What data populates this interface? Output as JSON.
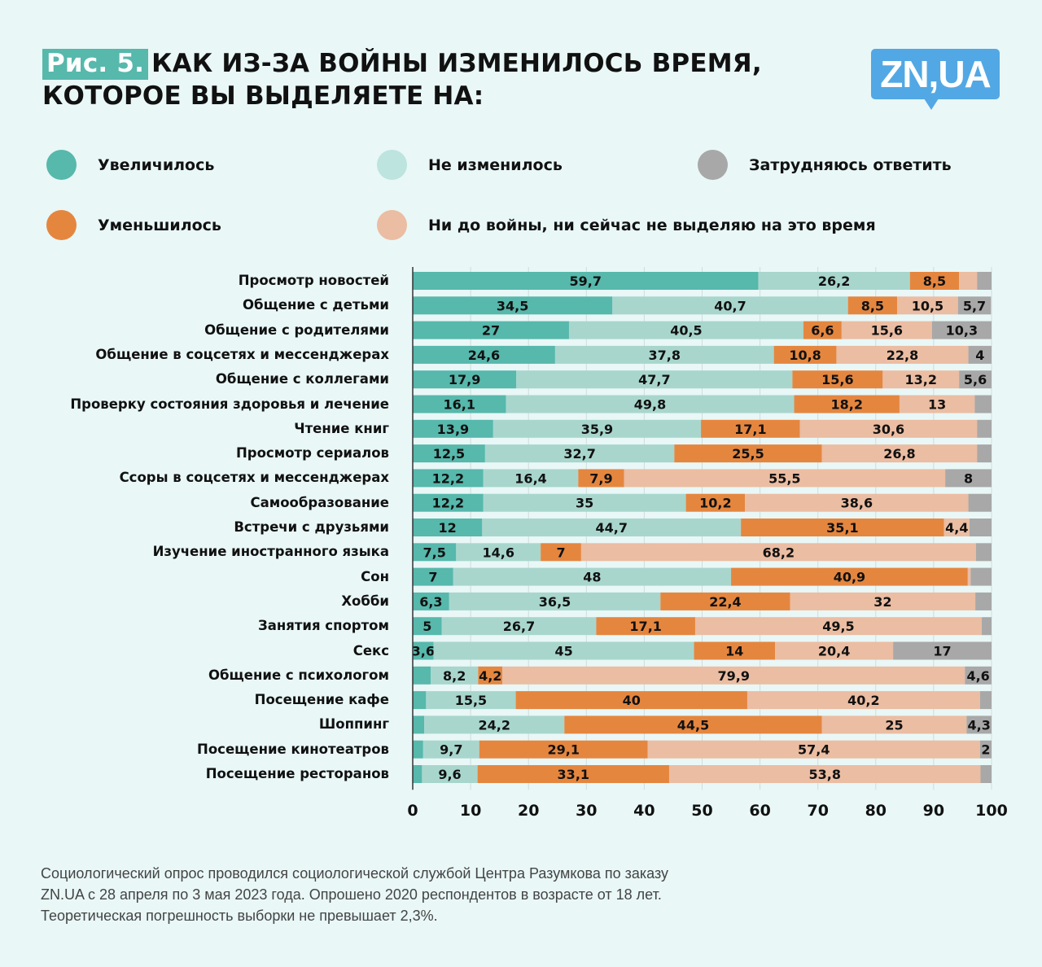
{
  "header": {
    "fig_tag": "Рис. 5.",
    "title_line1": "КАК ИЗ-ЗА ВОЙНЫ ИЗМЕНИЛОСЬ ВРЕМЯ,",
    "title_line2": "КОТОРОЕ ВЫ ВЫДЕЛЯЕТЕ НА:",
    "logo": "ZN,UA"
  },
  "footnote": {
    "line1": "Социологический опрос проводился социологической службой Центра Разумкова по заказу",
    "line2": "ZN.UA с 28 апреля по 3 мая 2023 года. Опрошено 2020 респондентов в возрасте от 18 лет.",
    "line3": "Теоретическая погрешность выборки не превышает 2,3%."
  },
  "chart_data": {
    "type": "bar",
    "orientation": "horizontal",
    "stacked": true,
    "title": "КАК ИЗ-ЗА ВОЙНЫ ИЗМЕНИЛОСЬ ВРЕМЯ, КОТОРОЕ ВЫ ВЫДЕЛЯЕТЕ НА:",
    "xlabel": "",
    "ylabel": "",
    "xlim": [
      0,
      100
    ],
    "x_ticks": [
      0,
      10,
      20,
      30,
      40,
      50,
      60,
      70,
      80,
      90,
      100
    ],
    "grid": true,
    "legend_position": "top",
    "categories": [
      "Просмотр новостей",
      "Общение с детьми",
      "Общение с родителями",
      "Общение в соцсетях и мессенджерах",
      "Общение с коллегами",
      "Проверку состояния здоровья и лечение",
      "Чтение книг",
      "Просмотр сериалов",
      "Ссоры в соцсетях и мессенджерах",
      "Самообразование",
      "Встречи с друзьями",
      "Изучение иностранного языка",
      "Сон",
      "Хобби",
      "Занятия спортом",
      "Секс",
      "Общение с психологом",
      "Посещение кафе",
      "Шоппинг",
      "Посещение кинотеатров",
      "Посещение ресторанов"
    ],
    "series": [
      {
        "name": "Увеличилось",
        "color": "#57b8ac",
        "values": [
          59.7,
          34.5,
          27,
          24.6,
          17.9,
          16.1,
          13.9,
          12.5,
          12.2,
          12.2,
          12,
          7.5,
          7,
          6.3,
          5,
          3.6,
          3.1,
          2.3,
          2,
          1.8,
          1.6
        ],
        "labeled": [
          true,
          true,
          true,
          true,
          true,
          true,
          true,
          true,
          true,
          true,
          true,
          true,
          true,
          true,
          true,
          true,
          false,
          false,
          false,
          false,
          false
        ]
      },
      {
        "name": "Не изменилось",
        "color": "#a8d6cd",
        "values": [
          26.2,
          40.7,
          40.5,
          37.8,
          47.7,
          49.8,
          35.9,
          32.7,
          16.4,
          35,
          44.7,
          14.6,
          48,
          36.5,
          26.7,
          45,
          8.2,
          15.5,
          24.2,
          9.7,
          9.6
        ],
        "labeled": [
          true,
          true,
          true,
          true,
          true,
          true,
          true,
          true,
          true,
          true,
          true,
          true,
          true,
          true,
          true,
          true,
          true,
          true,
          true,
          true,
          true
        ]
      },
      {
        "name": "Уменьшилось",
        "color": "#e5863f",
        "values": [
          8.5,
          8.5,
          6.6,
          10.8,
          15.6,
          18.2,
          17.1,
          25.5,
          7.9,
          10.2,
          35.1,
          7,
          40.9,
          22.4,
          17.1,
          14,
          4.2,
          40,
          44.5,
          29.1,
          33.1
        ],
        "labeled": [
          true,
          true,
          true,
          true,
          true,
          true,
          true,
          true,
          true,
          true,
          true,
          true,
          true,
          true,
          true,
          true,
          true,
          true,
          true,
          true,
          true
        ]
      },
      {
        "name": "Ни до войны, ни сейчас не выделяю на это время",
        "color": "#ebbda2",
        "values": [
          3.1,
          10.5,
          15.6,
          22.8,
          13.2,
          13,
          30.6,
          26.8,
          55.5,
          38.6,
          4.4,
          68.2,
          0.5,
          32,
          49.5,
          20.4,
          79.9,
          40.2,
          25,
          57.4,
          53.8
        ],
        "labeled": [
          false,
          true,
          true,
          true,
          true,
          true,
          true,
          true,
          true,
          true,
          true,
          true,
          false,
          true,
          true,
          true,
          true,
          true,
          true,
          true,
          true
        ]
      },
      {
        "name": "Затрудняюсь ответить",
        "color": "#a8a8a8",
        "values": [
          2.5,
          5.7,
          10.3,
          4,
          5.6,
          2.9,
          2.5,
          2.5,
          8,
          4,
          3.8,
          2.7,
          3.6,
          2.8,
          1.7,
          17,
          4.6,
          2,
          4.3,
          2,
          1.9
        ],
        "labeled": [
          false,
          true,
          true,
          true,
          true,
          false,
          false,
          false,
          true,
          false,
          false,
          false,
          false,
          false,
          false,
          true,
          true,
          false,
          true,
          true,
          false
        ]
      }
    ],
    "legend_order": [
      0,
      1,
      4,
      2,
      3
    ]
  }
}
